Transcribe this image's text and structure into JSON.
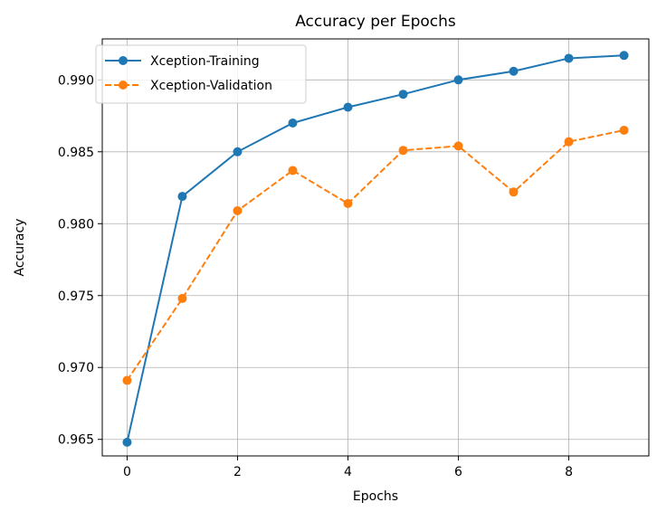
{
  "chart_data": {
    "type": "line",
    "title": "Accuracy per Epochs",
    "xlabel": "Epochs",
    "ylabel": "Accuracy",
    "x": [
      0,
      1,
      2,
      3,
      4,
      5,
      6,
      7,
      8,
      9
    ],
    "xlim": [
      -0.45,
      9.45
    ],
    "ylim": [
      0.96385,
      0.99285
    ],
    "xticks": [
      0,
      2,
      4,
      6,
      8
    ],
    "yticks": [
      0.965,
      0.97,
      0.975,
      0.98,
      0.985,
      0.99
    ],
    "ytick_labels": [
      "0.965",
      "0.970",
      "0.975",
      "0.980",
      "0.985",
      "0.990"
    ],
    "grid": true,
    "legend_position": "top-left",
    "series": [
      {
        "name": "Xception-Training",
        "color": "#1f77b4",
        "line_style": "solid",
        "marker": "circle",
        "values": [
          0.9648,
          0.9819,
          0.985,
          0.987,
          0.9881,
          0.989,
          0.99,
          0.9906,
          0.9915,
          0.9917
        ]
      },
      {
        "name": "Xception-Validation",
        "color": "#ff7f0e",
        "line_style": "dashed",
        "marker": "circle",
        "values": [
          0.9691,
          0.9748,
          0.9809,
          0.9837,
          0.9814,
          0.9851,
          0.9854,
          0.9822,
          0.9857,
          0.9865
        ]
      }
    ]
  }
}
